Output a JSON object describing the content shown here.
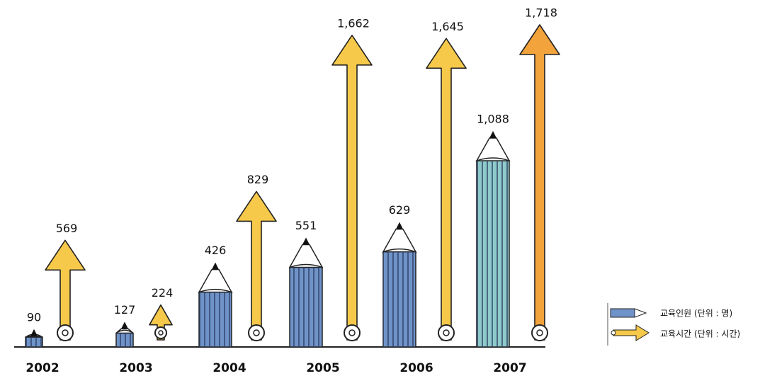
{
  "chart_data": {
    "type": "pictogram",
    "categories": [
      "2002",
      "2003",
      "2004",
      "2005",
      "2006",
      "2007"
    ],
    "series": [
      {
        "name": "교육인원 (단위 : 명)",
        "color": "#6f93c8",
        "colors": [
          "#6f93c8",
          "#6f93c8",
          "#6f93c8",
          "#6f93c8",
          "#6f93c8",
          "#8fcaca"
        ],
        "values": [
          90,
          127,
          426,
          551,
          629,
          1088
        ],
        "value_labels": [
          "90",
          "127",
          "426",
          "551",
          "629",
          "1,088"
        ]
      },
      {
        "name": "교육시간 (단위 : 시간)",
        "color": "#f6c94a",
        "colors": [
          "#f6c94a",
          "#f6c94a",
          "#f6c94a",
          "#f6c94a",
          "#f6c94a",
          "#f3a33c"
        ],
        "values": [
          569,
          224,
          829,
          1662,
          1645,
          1718
        ],
        "value_labels": [
          "569",
          "224",
          "829",
          "1,662",
          "1,645",
          "1,718"
        ]
      }
    ]
  }
}
